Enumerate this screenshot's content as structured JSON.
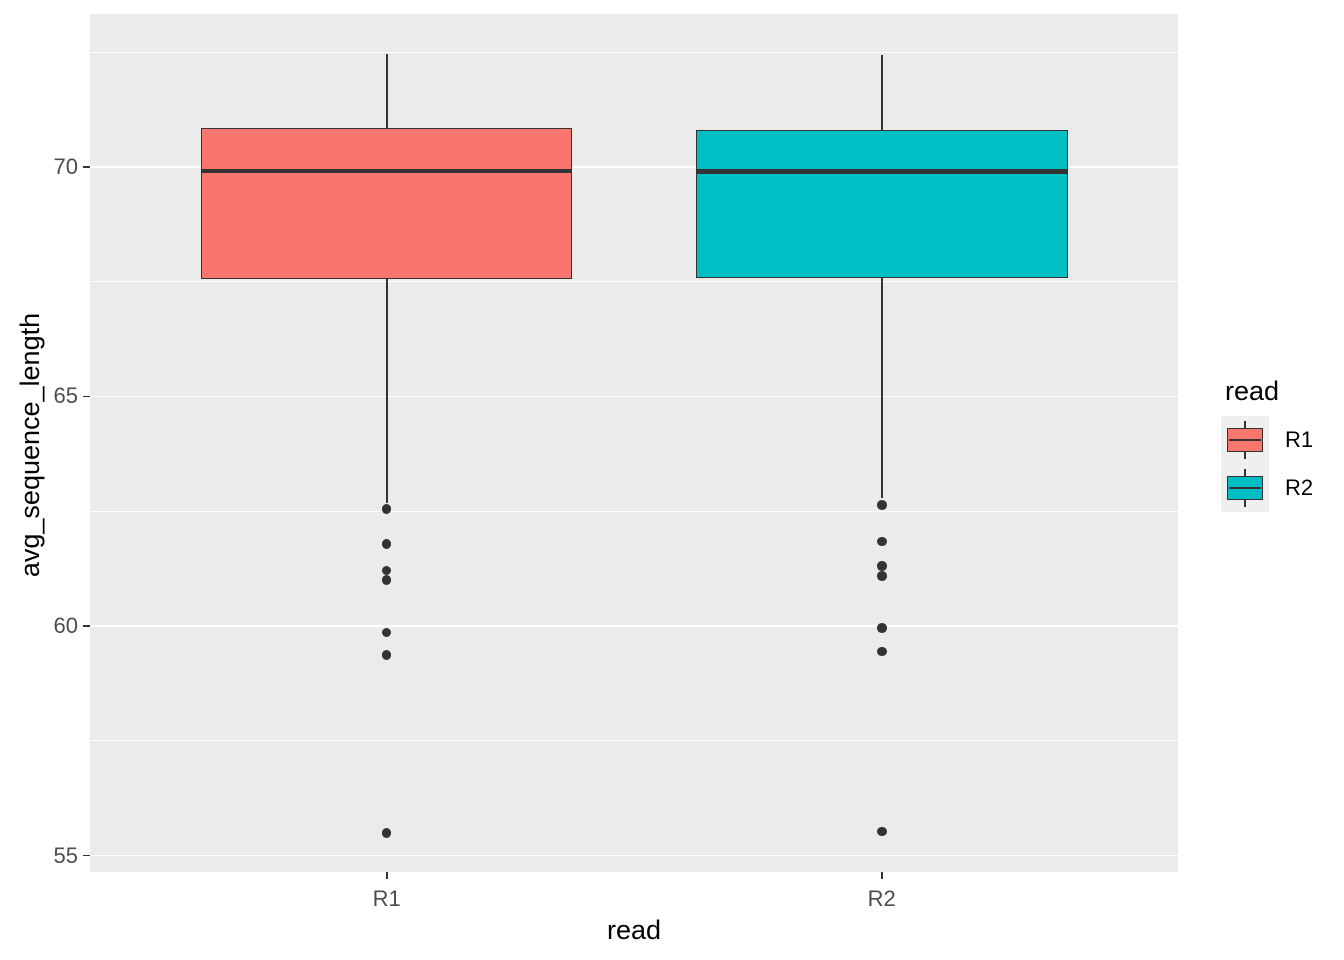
{
  "chart_data": {
    "type": "boxplot",
    "title": "",
    "xlabel": "read",
    "ylabel": "avg_sequence_length",
    "categories": [
      "R1",
      "R2"
    ],
    "y_axis": {
      "major_ticks": [
        55,
        60,
        65,
        70
      ],
      "minor_ticks": [
        57.5,
        62.5,
        67.5,
        72.5
      ],
      "ylim": [
        54.64,
        73.33
      ],
      "grid": true
    },
    "panel_bg": "#EBEBEB",
    "grid_color": "#FFFFFF",
    "line_color": "#333333",
    "axis_text_color": "#4D4D4D",
    "legend_position": "right",
    "series": [
      {
        "name": "R1",
        "fill": "#F8766D",
        "whisker_high": 72.47,
        "q3": 70.85,
        "median": 69.91,
        "q1": 67.55,
        "whisker_low": 62.67,
        "outliers": [
          62.55,
          61.79,
          61.21,
          61.0,
          59.86,
          59.37,
          55.49
        ]
      },
      {
        "name": "R2",
        "fill": "#00BFC4",
        "whisker_high": 72.44,
        "q3": 70.81,
        "median": 69.9,
        "q1": 67.57,
        "whisker_low": 62.78,
        "outliers": [
          62.64,
          61.84,
          61.31,
          61.09,
          59.96,
          59.44,
          55.52
        ]
      }
    ]
  },
  "legend": {
    "title": "read",
    "key_bg": "#EFEFEF",
    "entries": [
      {
        "label": "R1",
        "color": "#F8766D"
      },
      {
        "label": "R2",
        "color": "#00BFC4"
      }
    ]
  }
}
